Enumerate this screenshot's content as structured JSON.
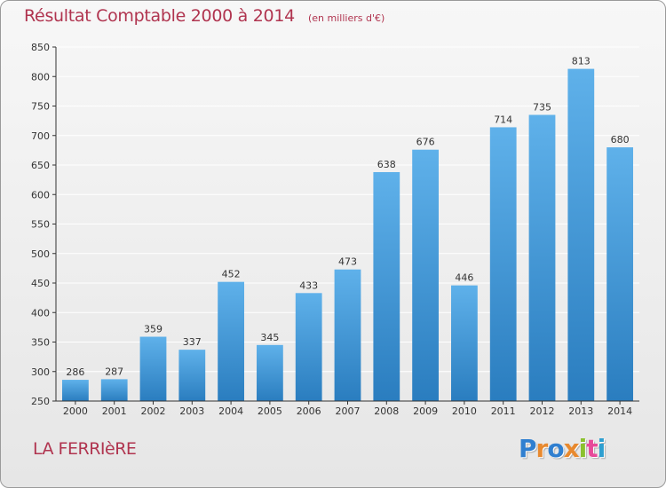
{
  "header": {
    "title": "Résultat Comptable 2000 à 2014",
    "subtitle": "(en milliers d'€)"
  },
  "footer": {
    "place": "LA FERRIèRE",
    "logo_text": "Proxiti",
    "logo_colors": [
      "#2f7fd0",
      "#e8892e",
      "#2f7fd0",
      "#e8892e",
      "#8bc12f",
      "#e84a9a",
      "#2f9fd0"
    ]
  },
  "colors": {
    "bar_top": "#5fb1ea",
    "bar_bottom": "#2a7dbf",
    "axis": "#333333",
    "grid": "#ffffff",
    "title": "#b0344f"
  },
  "chart_data": {
    "type": "bar",
    "title": "Résultat Comptable 2000 à 2014",
    "subtitle": "(en milliers d'€)",
    "xlabel": "",
    "ylabel": "",
    "categories": [
      "2000",
      "2001",
      "2002",
      "2003",
      "2004",
      "2005",
      "2006",
      "2007",
      "2008",
      "2009",
      "2010",
      "2011",
      "2012",
      "2013",
      "2014"
    ],
    "values": [
      286,
      287,
      359,
      337,
      452,
      345,
      433,
      473,
      638,
      676,
      446,
      714,
      735,
      813,
      680
    ],
    "ylim": [
      250,
      850
    ],
    "yticks": [
      250,
      300,
      350,
      400,
      450,
      500,
      550,
      600,
      650,
      700,
      750,
      800,
      850
    ],
    "grid": true,
    "legend": "none"
  }
}
